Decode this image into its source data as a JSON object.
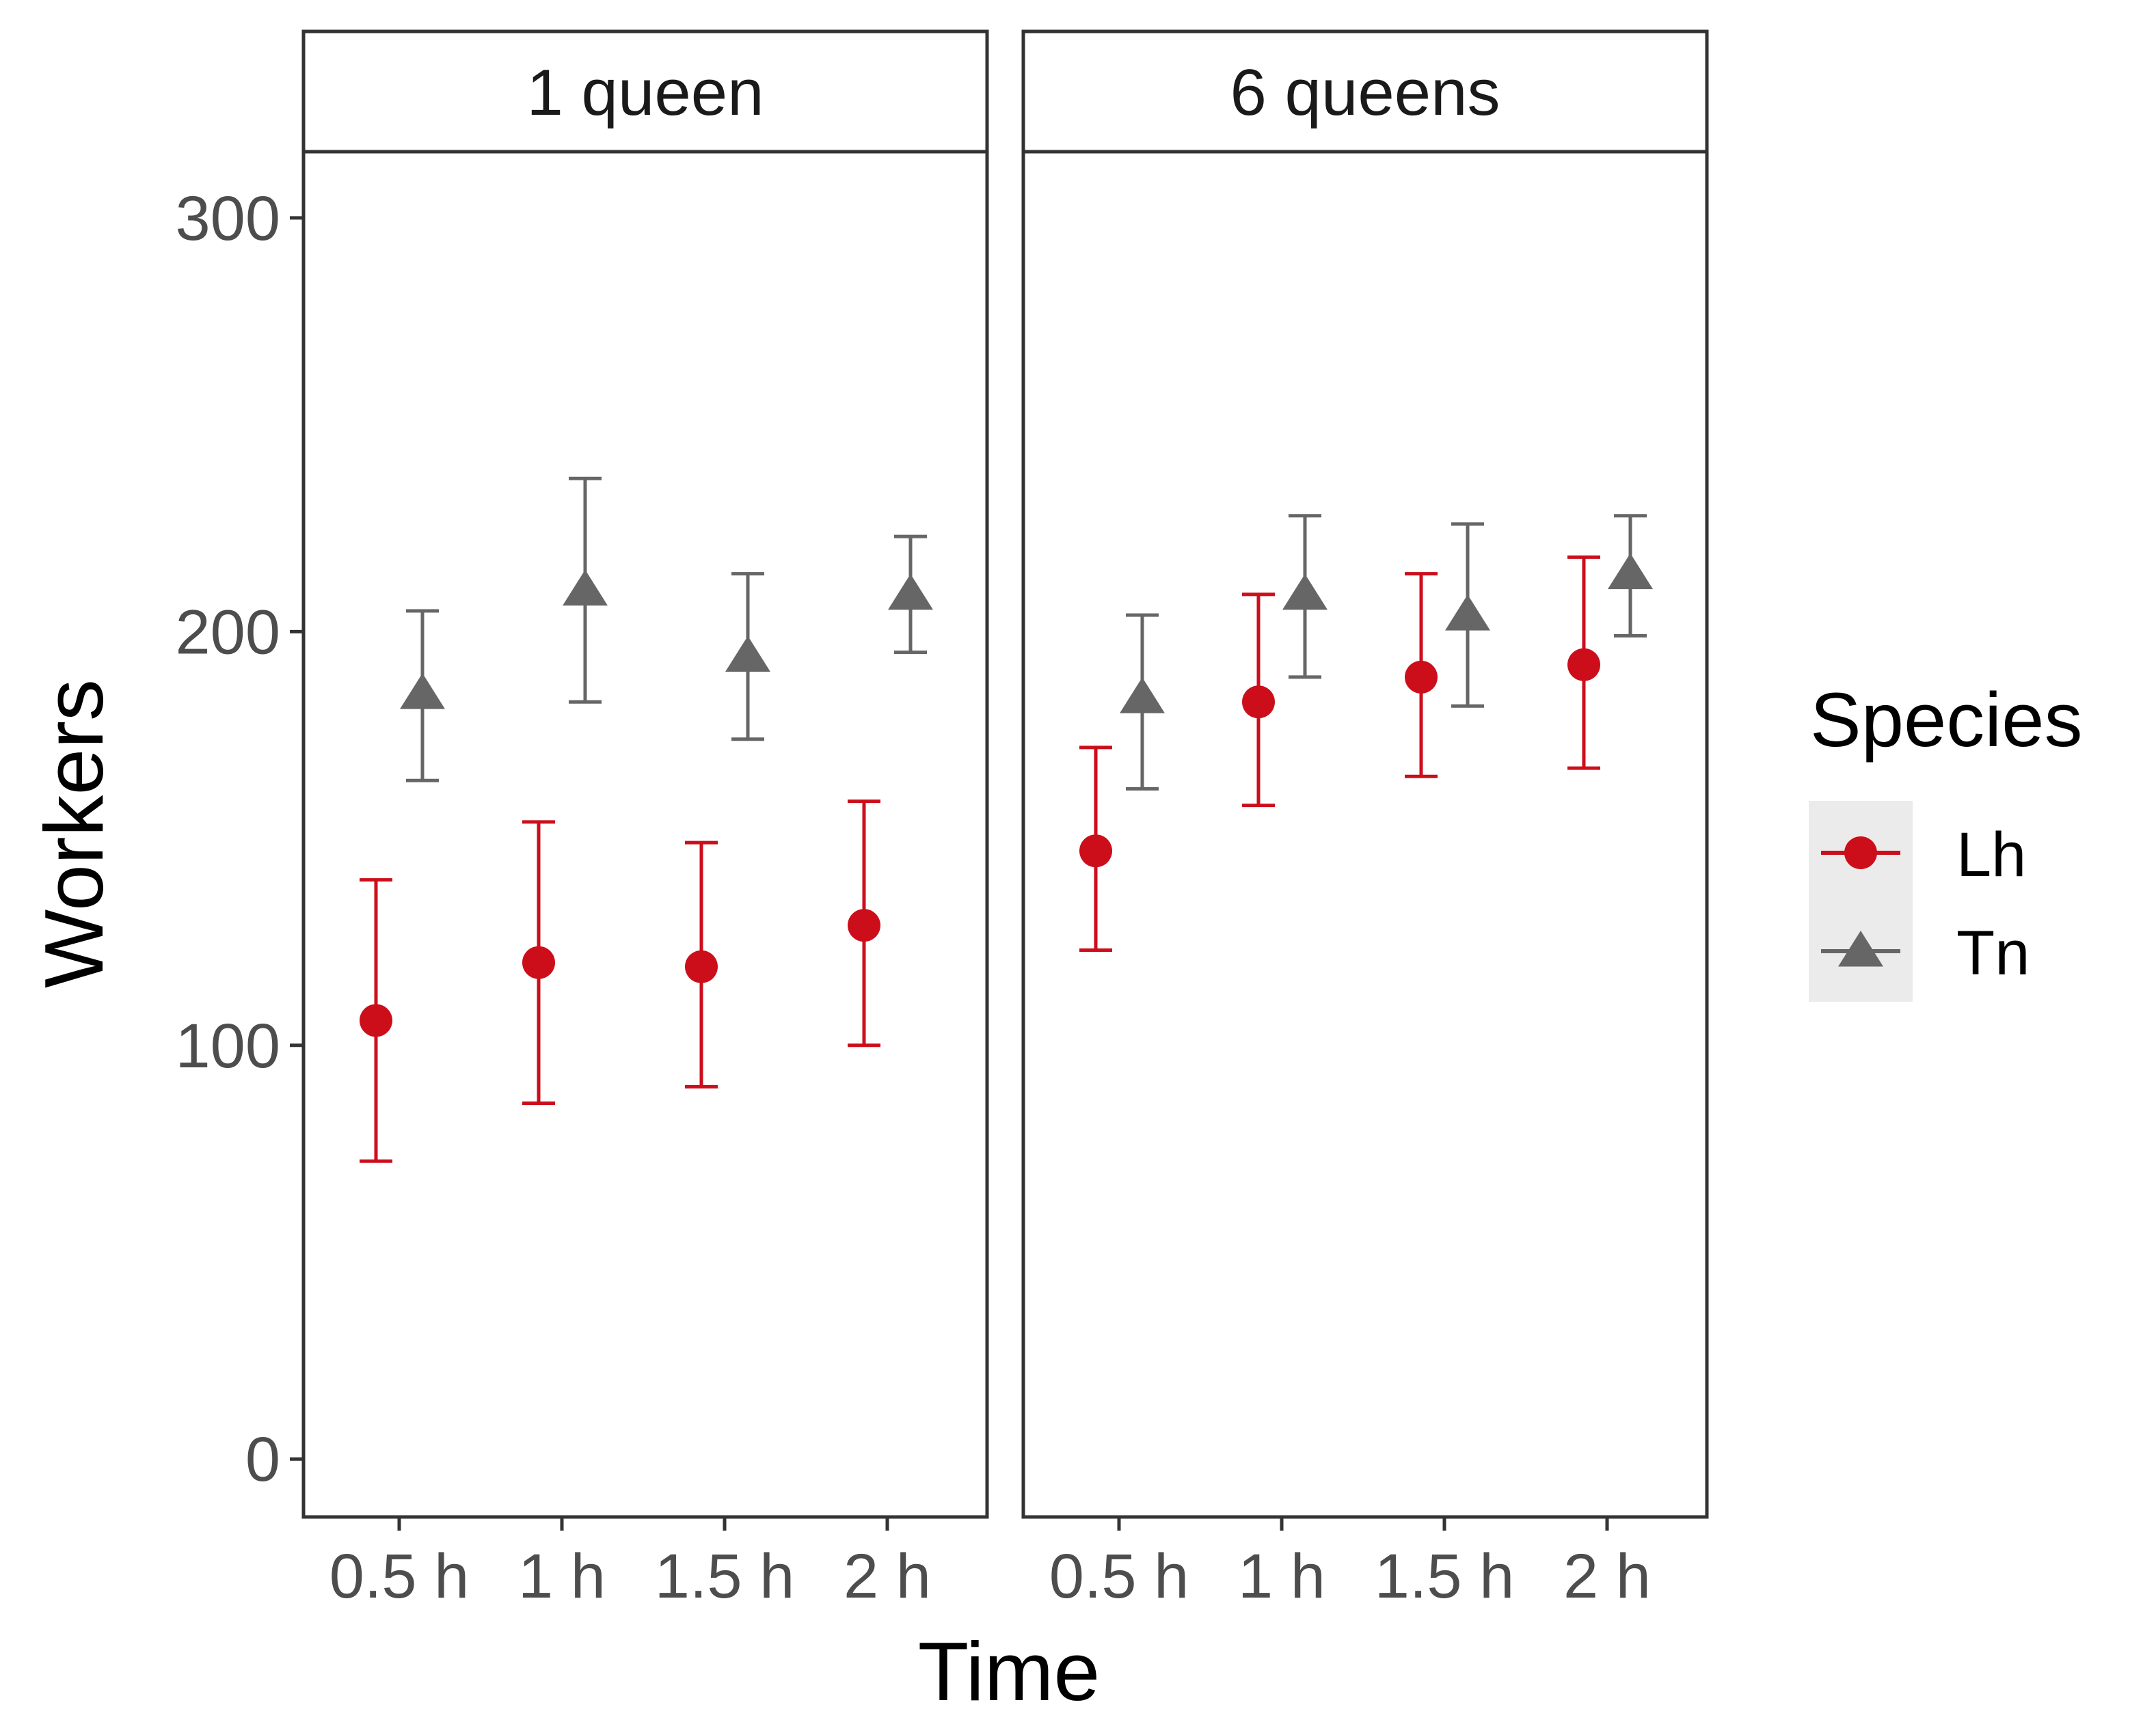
{
  "chart_data": {
    "type": "scatter",
    "xlabel": "Time",
    "ylabel": "Workers",
    "ylim": [
      -14,
      316
    ],
    "y_ticks": [
      "0",
      "100",
      "200",
      "300"
    ],
    "categories": [
      "0.5 h",
      "1 h",
      "1.5 h",
      "2 h"
    ],
    "legend": {
      "title": "Species",
      "placement": "right"
    },
    "panels": [
      {
        "label": "1 queen",
        "series": [
          {
            "name": "Lh",
            "color": "#cc0e1b",
            "shape": "circle",
            "values": [
              106,
              120,
              119,
              129
            ],
            "lower": [
              72,
              86,
              90,
              100
            ],
            "upper": [
              140,
              154,
              149,
              159
            ]
          },
          {
            "name": "Tn",
            "color": "#666666",
            "shape": "triangle",
            "values": [
              185,
              210,
              194,
              209
            ],
            "lower": [
              164,
              183,
              174,
              195
            ],
            "upper": [
              205,
              237,
              214,
              223
            ]
          }
        ]
      },
      {
        "label": "6 queens",
        "series": [
          {
            "name": "Lh",
            "color": "#cc0e1b",
            "shape": "circle",
            "values": [
              147,
              183,
              189,
              192
            ],
            "lower": [
              123,
              158,
              165,
              167
            ],
            "upper": [
              172,
              209,
              214,
              218
            ]
          },
          {
            "name": "Tn",
            "color": "#666666",
            "shape": "triangle",
            "values": [
              184,
              209,
              204,
              214
            ],
            "lower": [
              162,
              189,
              182,
              199
            ],
            "upper": [
              204,
              228,
              226,
              228
            ]
          }
        ]
      }
    ],
    "grid": false
  }
}
